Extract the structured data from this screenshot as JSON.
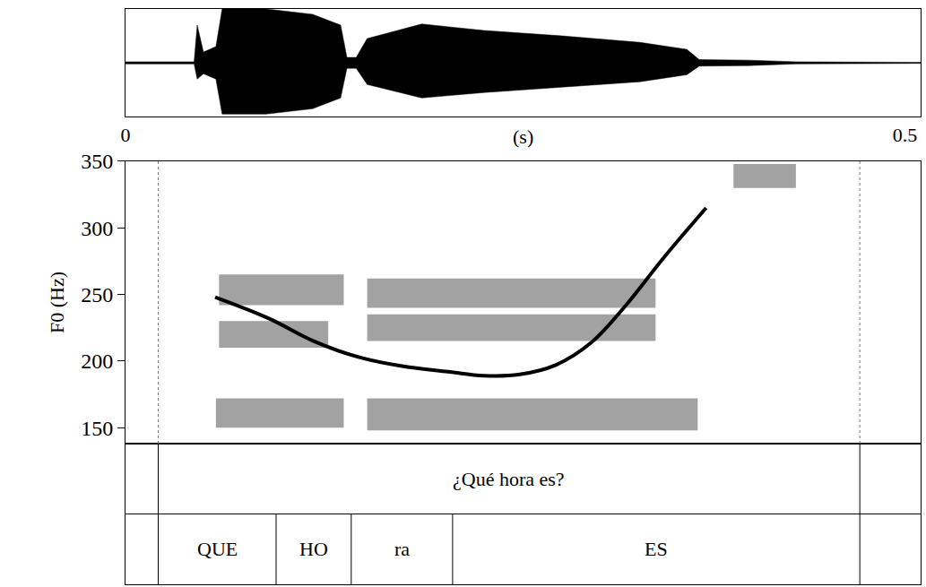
{
  "chart_data": {
    "type": "line",
    "xlabel": "(s)",
    "ylabel": "F0 (Hz)",
    "xlim": [
      0,
      0.51
    ],
    "xticks": [
      0,
      0.5
    ],
    "ylim": [
      138,
      350
    ],
    "yticks": [
      150,
      200,
      250,
      300,
      350
    ],
    "color": "#000000",
    "x": [
      0.0575,
      0.092,
      0.1207,
      0.1494,
      0.1782,
      0.2069,
      0.2299,
      0.2529,
      0.2759,
      0.2989,
      0.3218,
      0.3448,
      0.3724
    ],
    "values": [
      248,
      232,
      215,
      203,
      196,
      192,
      189,
      190,
      197,
      214,
      243,
      277,
      315
    ],
    "waveform": {
      "ylim": [
        -1,
        1
      ],
      "color": "#000000",
      "x": [
        0,
        0.044,
        0.046,
        0.05,
        0.058,
        0.062,
        0.09,
        0.12,
        0.138,
        0.142,
        0.148,
        0.155,
        0.19,
        0.23,
        0.28,
        0.33,
        0.36,
        0.368,
        0.4,
        0.43,
        0.51
      ],
      "upper": [
        0.02,
        0.02,
        0.7,
        0.2,
        0.3,
        1.0,
        1.0,
        0.9,
        0.7,
        0.1,
        0.1,
        0.45,
        0.72,
        0.6,
        0.5,
        0.38,
        0.25,
        0.06,
        0.05,
        0.02,
        0.01
      ],
      "lower": [
        -0.02,
        -0.02,
        -0.3,
        -0.2,
        -0.3,
        -0.95,
        -0.95,
        -0.85,
        -0.65,
        -0.1,
        -0.1,
        -0.4,
        -0.65,
        -0.55,
        -0.45,
        -0.35,
        -0.22,
        -0.06,
        -0.05,
        -0.02,
        -0.01
      ]
    },
    "spectrogram": {
      "color": "#555555",
      "bands": [
        {
          "x0": 0.058,
          "x1": 0.14,
          "y0": 150,
          "y1": 172
        },
        {
          "x0": 0.155,
          "x1": 0.367,
          "y0": 148,
          "y1": 172
        },
        {
          "x0": 0.06,
          "x1": 0.14,
          "y0": 242,
          "y1": 265
        },
        {
          "x0": 0.06,
          "x1": 0.13,
          "y0": 210,
          "y1": 230
        },
        {
          "x0": 0.155,
          "x1": 0.34,
          "y0": 240,
          "y1": 262
        },
        {
          "x0": 0.155,
          "x1": 0.34,
          "y0": 215,
          "y1": 235
        },
        {
          "x0": 0.39,
          "x1": 0.43,
          "y0": 330,
          "y1": 348
        }
      ]
    },
    "tiers": [
      {
        "intervals": [
          {
            "start": 0.021,
            "end": 0.471,
            "text": "¿Qué hora es?"
          }
        ]
      },
      {
        "intervals": [
          {
            "start": 0.021,
            "end": 0.0966,
            "text": "QUE"
          },
          {
            "start": 0.0966,
            "end": 0.1448,
            "text": "HO"
          },
          {
            "start": 0.1448,
            "end": 0.2098,
            "text": "ra"
          },
          {
            "start": 0.2098,
            "end": 0.471,
            "text": "ES"
          }
        ]
      }
    ]
  }
}
